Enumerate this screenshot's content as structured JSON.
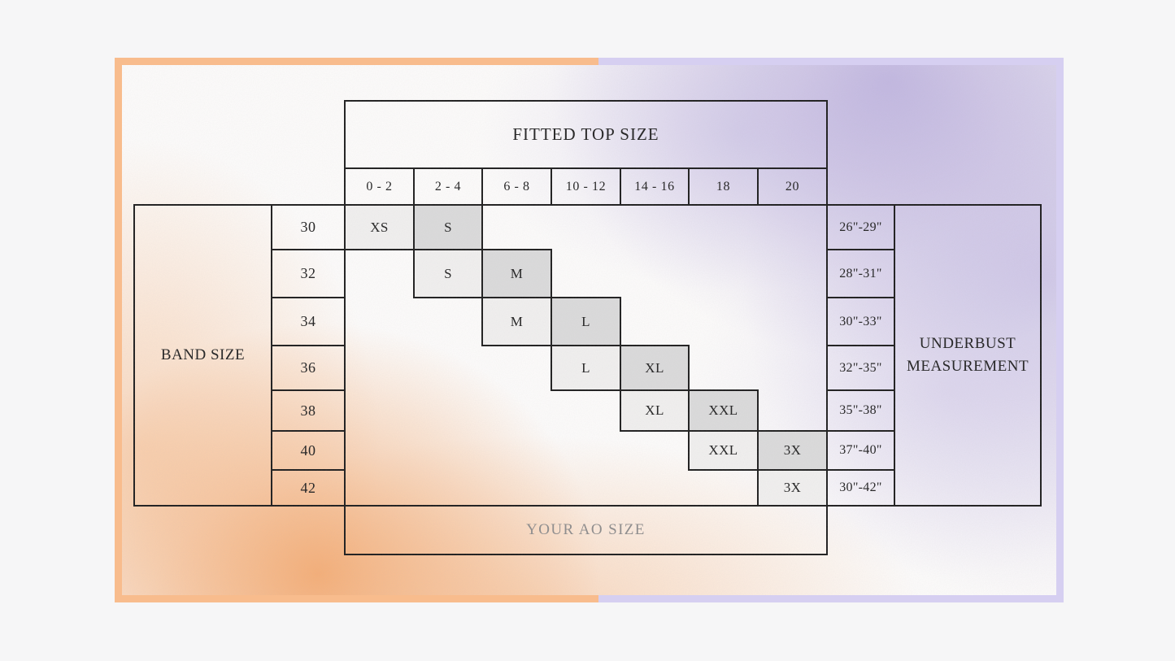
{
  "chart_data": {
    "type": "table",
    "title": "FITTED TOP SIZE",
    "row_axis_label": "BAND SIZE",
    "value_axis_label": "UNDERBUST MEASUREMENT",
    "footer": "YOUR AO SIZE",
    "column_headers": [
      "0 - 2",
      "2 - 4",
      "6 - 8",
      "10 - 12",
      "14 - 16",
      "18",
      "20"
    ],
    "band_sizes": [
      "30",
      "32",
      "34",
      "36",
      "38",
      "40",
      "42"
    ],
    "underbust_values": [
      "26\"-29\"",
      "28\"-31\"",
      "30\"-33\"",
      "32\"-35\"",
      "35\"-38\"",
      "37\"-40\"",
      "30\"-42\""
    ],
    "size_cells": [
      {
        "row": 0,
        "col": 0,
        "label": "XS",
        "shade": "light"
      },
      {
        "row": 0,
        "col": 1,
        "label": "S",
        "shade": "dark"
      },
      {
        "row": 1,
        "col": 1,
        "label": "S",
        "shade": "light"
      },
      {
        "row": 1,
        "col": 2,
        "label": "M",
        "shade": "dark"
      },
      {
        "row": 2,
        "col": 2,
        "label": "M",
        "shade": "light"
      },
      {
        "row": 2,
        "col": 3,
        "label": "L",
        "shade": "dark"
      },
      {
        "row": 3,
        "col": 3,
        "label": "L",
        "shade": "light"
      },
      {
        "row": 3,
        "col": 4,
        "label": "XL",
        "shade": "dark"
      },
      {
        "row": 4,
        "col": 4,
        "label": "XL",
        "shade": "light"
      },
      {
        "row": 4,
        "col": 5,
        "label": "XXL",
        "shade": "dark"
      },
      {
        "row": 5,
        "col": 5,
        "label": "XXL",
        "shade": "light"
      },
      {
        "row": 5,
        "col": 6,
        "label": "3X",
        "shade": "dark"
      },
      {
        "row": 6,
        "col": 6,
        "label": "3X",
        "shade": "light"
      }
    ],
    "rows": [
      {
        "band_size": "30",
        "sizes": {
          "0 - 2": "XS",
          "2 - 4": "S"
        },
        "underbust": "26\"-29\""
      },
      {
        "band_size": "32",
        "sizes": {
          "2 - 4": "S",
          "6 - 8": "M"
        },
        "underbust": "28\"-31\""
      },
      {
        "band_size": "34",
        "sizes": {
          "6 - 8": "M",
          "10 - 12": "L"
        },
        "underbust": "30\"-33\""
      },
      {
        "band_size": "36",
        "sizes": {
          "10 - 12": "L",
          "14 - 16": "XL"
        },
        "underbust": "32\"-35\""
      },
      {
        "band_size": "38",
        "sizes": {
          "14 - 16": "XL",
          "18": "XXL"
        },
        "underbust": "35\"-38\""
      },
      {
        "band_size": "40",
        "sizes": {
          "18": "XXL",
          "20": "3X"
        },
        "underbust": "37\"-40\""
      },
      {
        "band_size": "42",
        "sizes": {
          "20": "3X"
        },
        "underbust": "30\"-42\""
      }
    ]
  },
  "colors": {
    "page_bg": "#f6f6f7",
    "frame_left": "#f8bc8d",
    "frame_right": "#d6cff1",
    "line": "#1d1d1d",
    "ink": "#222222",
    "cell_light": "#f1f0ef",
    "cell_dark": "#dbdbdb",
    "footer_text": "#8d8c8c",
    "blob_orange": "#f39e5c",
    "blob_purple": "#a798d4"
  }
}
